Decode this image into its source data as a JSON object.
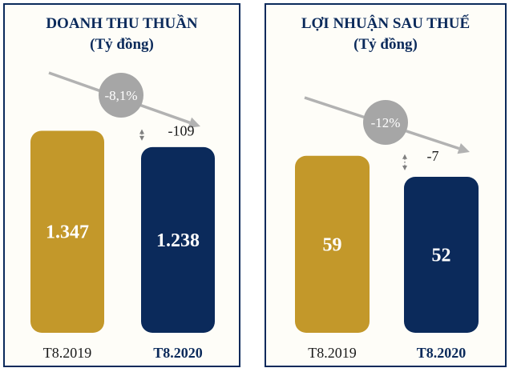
{
  "colors": {
    "gold": "#c3982a",
    "navy": "#0b2a5b",
    "arrow": "#b2b2b2",
    "circle": "#a6a6a6"
  },
  "chart_data": [
    {
      "type": "bar",
      "title": "DOANH THU THUẦN",
      "subtitle": "(Tỷ đồng)",
      "categories": [
        "T8.2019",
        "T8.2020"
      ],
      "values": [
        1347,
        1238
      ],
      "value_labels": [
        "1.347",
        "1.238"
      ],
      "difference_label": "-109",
      "change_label": "-8,1%",
      "trend": "down",
      "ylim": [
        0,
        1600
      ]
    },
    {
      "type": "bar",
      "title": "LỢI NHUẬN SAU THUẾ",
      "subtitle": "(Tỷ đồng)",
      "categories": [
        "T8.2019",
        "T8.2020"
      ],
      "values": [
        59,
        52
      ],
      "value_labels": [
        "59",
        "52"
      ],
      "difference_label": "-7",
      "change_label": "-12%",
      "trend": "down",
      "ylim": [
        0,
        80
      ]
    }
  ]
}
